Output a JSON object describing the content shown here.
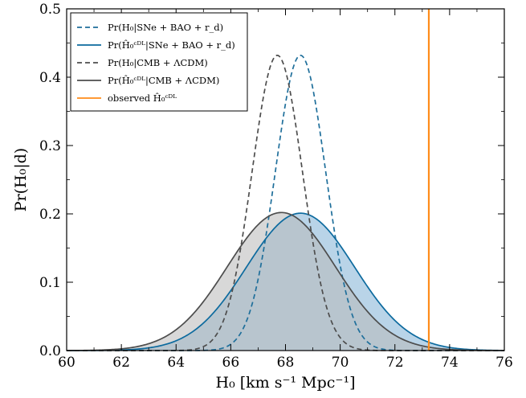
{
  "chart_data": {
    "type": "line",
    "xlabel": "H₀ [km s⁻¹ Mpc⁻¹]",
    "ylabel": "Pr(H₀|d)",
    "xlim": [
      60,
      76
    ],
    "ylim": [
      0,
      0.5
    ],
    "xticks": [
      "60",
      "62",
      "64",
      "66",
      "68",
      "70",
      "72",
      "74",
      "76"
    ],
    "yticks": [
      "0.0",
      "0.1",
      "0.2",
      "0.3",
      "0.4",
      "0.5"
    ],
    "grid": false,
    "legend_position": "top-left",
    "series": [
      {
        "name": "Pr(H₀|SNe + BAO + r_d)",
        "kind": "gaussian",
        "mean": 68.55,
        "sigma": 0.92,
        "peak": 0.432,
        "color": "#1f6f9b",
        "dashed": true,
        "fill": false
      },
      {
        "name": "Pr(Ĥ₀ᶜᴰᴸ|SNe + BAO + r_d)",
        "kind": "gaussian",
        "mean": 68.55,
        "sigma": 1.98,
        "peak": 0.201,
        "color": "#0c6a9e",
        "dashed": false,
        "fill": true,
        "fill_color": "#7fb1d6"
      },
      {
        "name": "Pr(H₀|CMB + ΛCDM)",
        "kind": "gaussian",
        "mean": 67.7,
        "sigma": 0.92,
        "peak": 0.432,
        "color": "#4d4d4d",
        "dashed": true,
        "fill": false
      },
      {
        "name": "Pr(Ĥ₀ᶜᴰᴸ|CMB + ΛCDM)",
        "kind": "gaussian",
        "mean": 67.85,
        "sigma": 1.98,
        "peak": 0.202,
        "color": "#4d4d4d",
        "dashed": false,
        "fill": true,
        "fill_color": "#b8b8b8"
      },
      {
        "name": "observed Ĥ₀ᶜᴰᴸ",
        "kind": "vline",
        "x": 73.24,
        "color": "#ff8c1a",
        "dashed": false,
        "fill": false
      }
    ]
  }
}
